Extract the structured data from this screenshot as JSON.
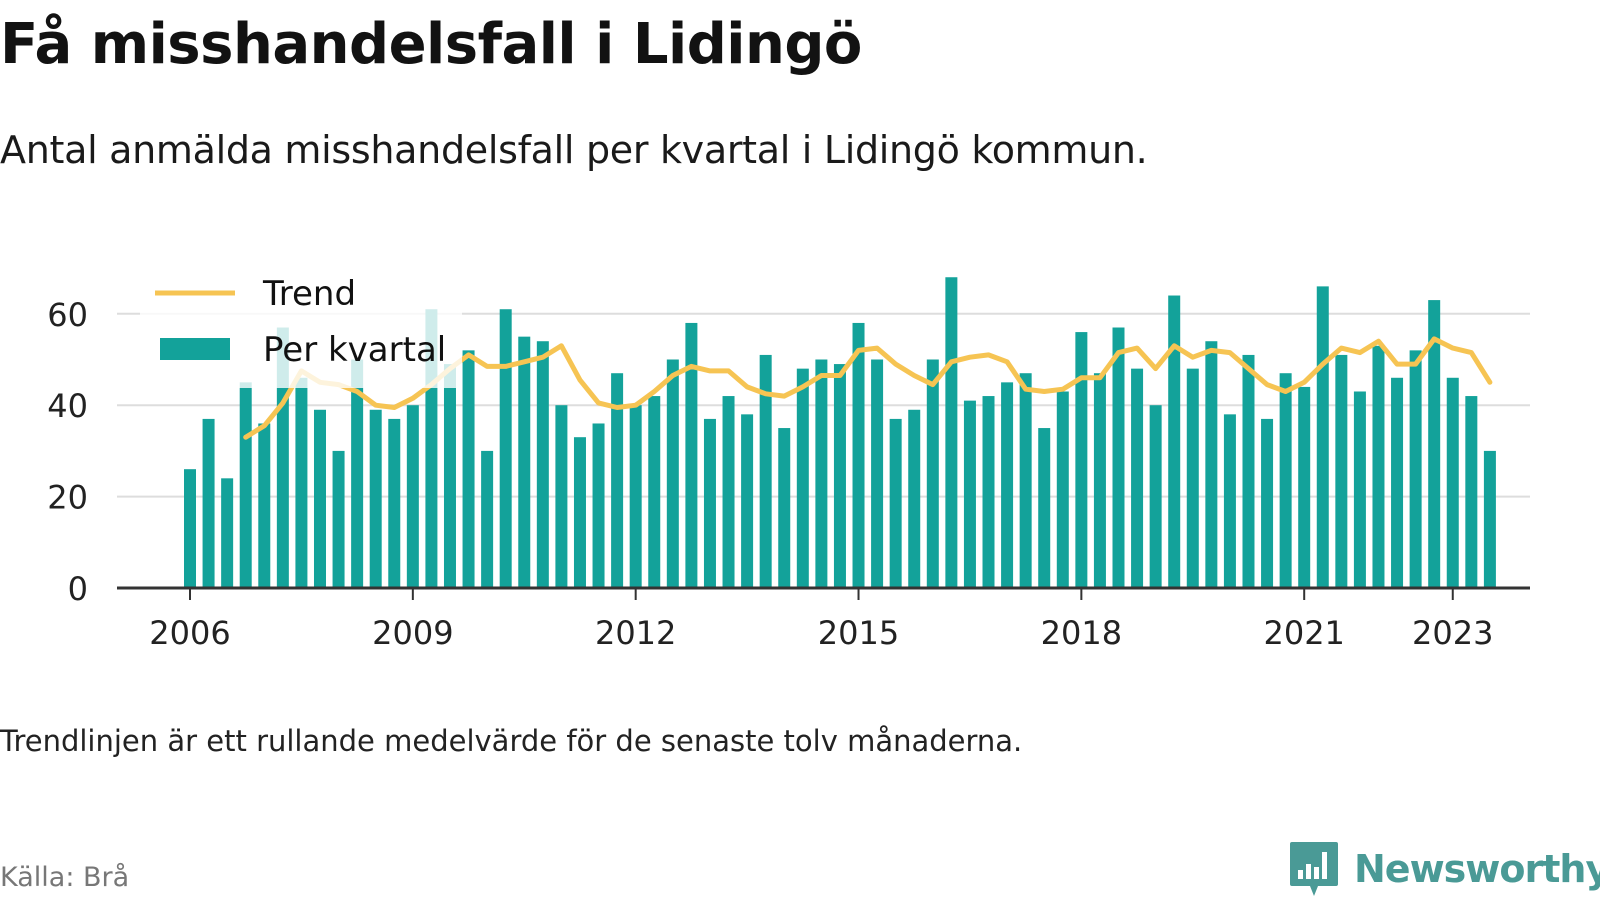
{
  "header": {
    "title": "Få misshandelsfall i Lidingö",
    "subtitle": "Antal anmälda misshandelsfall per kvartal i Lidingö kommun."
  },
  "footer": {
    "note": "Trendlinjen är ett rullande medelvärde för de senaste tolv månaderna.",
    "source": "Källa: Brå",
    "brand": "Newsworthy"
  },
  "colors": {
    "bar": "#13a29a",
    "trend": "#f6c453",
    "grid": "#dddddd",
    "axis": "#333333",
    "brand": "#4a9a96"
  },
  "chart_data": {
    "type": "bar",
    "x_ticks": [
      "2006",
      "2009",
      "2012",
      "2015",
      "2018",
      "2021",
      "2023"
    ],
    "x_tick_years": [
      2006,
      2009,
      2012,
      2015,
      2018,
      2021,
      2023
    ],
    "y_ticks": [
      "0",
      "20",
      "40",
      "60"
    ],
    "ylim": [
      0,
      70
    ],
    "grid": true,
    "legend_position": "top-left",
    "legend": [
      "Trend",
      "Per kvartal"
    ],
    "start_year": 2006,
    "series": [
      {
        "name": "Per kvartal",
        "type": "bar",
        "values": [
          26,
          37,
          24,
          45,
          36,
          57,
          46,
          39,
          30,
          50,
          39,
          37,
          40,
          61,
          49,
          52,
          30,
          61,
          55,
          54,
          40,
          33,
          36,
          47,
          40,
          42,
          50,
          58,
          37,
          42,
          38,
          51,
          35,
          48,
          50,
          49,
          58,
          50,
          37,
          39,
          50,
          68,
          41,
          42,
          45,
          47,
          35,
          43,
          56,
          47,
          57,
          48,
          40,
          64,
          48,
          54,
          38,
          51,
          37,
          47,
          44,
          66,
          51,
          43,
          53,
          46,
          52,
          63,
          46,
          42,
          30
        ]
      },
      {
        "name": "Trend",
        "type": "line",
        "values": [
          null,
          null,
          null,
          33,
          35.5,
          40.5,
          47.5,
          45,
          44.5,
          43,
          40,
          39.5,
          41.5,
          44.5,
          48,
          51,
          48.5,
          48.5,
          49.5,
          50.5,
          53,
          45.5,
          40.5,
          39.5,
          40,
          43,
          46.5,
          48.5,
          47.5,
          47.5,
          44,
          42.5,
          42,
          44,
          46.5,
          46.5,
          52,
          52.5,
          49,
          46.5,
          44.5,
          49.5,
          50.5,
          51,
          49.5,
          43.5,
          43,
          43.5,
          46,
          46,
          51.5,
          52.5,
          48,
          53,
          50.5,
          52,
          51.5,
          48,
          44.5,
          43,
          45,
          49,
          52.5,
          51.5,
          54,
          49,
          49,
          54.5,
          52.5,
          51.5,
          45
        ]
      }
    ]
  }
}
